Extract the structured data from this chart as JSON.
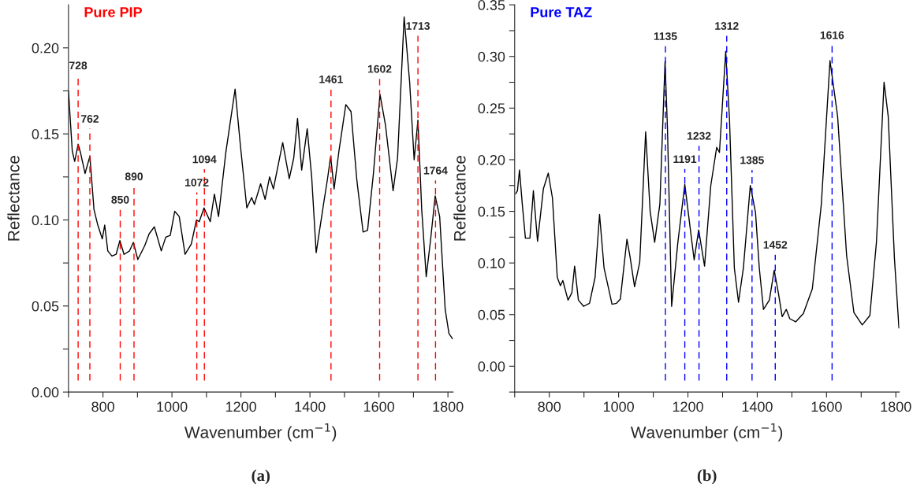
{
  "chart_data": [
    {
      "type": "line",
      "title": "Pure PIP",
      "xlabel": "Wavenumber (cm$^{−1}$)",
      "ylabel": "Reflectance",
      "annotations": [
        "(a)"
      ],
      "x": [
        700,
        711,
        718,
        728,
        735,
        748,
        762,
        774,
        785,
        798,
        805,
        814,
        826,
        838,
        849,
        861,
        877,
        888,
        901,
        921,
        934,
        949,
        969,
        982,
        995,
        1008,
        1021,
        1038,
        1056,
        1071,
        1079,
        1093,
        1111,
        1123,
        1135,
        1156,
        1183,
        1198,
        1217,
        1231,
        1239,
        1257,
        1270,
        1283,
        1294,
        1321,
        1340,
        1353,
        1364,
        1376,
        1392,
        1405,
        1418,
        1440,
        1451,
        1460,
        1470,
        1484,
        1504,
        1519,
        1536,
        1554,
        1567,
        1584,
        1603,
        1619,
        1641,
        1654,
        1673,
        1689,
        1702,
        1713,
        1724,
        1737,
        1750,
        1763,
        1776,
        1792,
        1803,
        1813
      ],
      "series": [
        {
          "color": "#000000",
          "values": [
            0.175,
            0.14,
            0.134,
            0.144,
            0.139,
            0.127,
            0.137,
            0.106,
            0.097,
            0.089,
            0.097,
            0.082,
            0.079,
            0.08,
            0.088,
            0.08,
            0.082,
            0.087,
            0.077,
            0.085,
            0.092,
            0.096,
            0.082,
            0.09,
            0.091,
            0.105,
            0.102,
            0.08,
            0.086,
            0.1,
            0.099,
            0.107,
            0.099,
            0.115,
            0.102,
            0.139,
            0.176,
            0.144,
            0.107,
            0.113,
            0.109,
            0.121,
            0.112,
            0.125,
            0.118,
            0.145,
            0.124,
            0.136,
            0.159,
            0.129,
            0.153,
            0.125,
            0.081,
            0.11,
            0.124,
            0.137,
            0.118,
            0.14,
            0.167,
            0.163,
            0.123,
            0.093,
            0.094,
            0.127,
            0.173,
            0.155,
            0.117,
            0.136,
            0.218,
            0.18,
            0.135,
            0.158,
            0.106,
            0.067,
            0.089,
            0.114,
            0.102,
            0.048,
            0.034,
            0.031
          ]
        }
      ],
      "xlim": [
        700,
        1815
      ],
      "ylim": [
        0,
        0.225
      ],
      "xticks": [
        {
          "value": 700,
          "label": null
        },
        800,
        {
          "value": 900,
          "label": null
        },
        1000,
        {
          "value": 1100,
          "label": null
        },
        1200,
        {
          "value": 1300,
          "label": null
        },
        1400,
        {
          "value": 1500,
          "label": null
        },
        1600,
        {
          "value": 1700,
          "label": null
        },
        1800
      ],
      "yticks": [
        {
          "value": 0,
          "label": "0.00"
        },
        {
          "value": 0.025,
          "label": null
        },
        {
          "value": 0.05,
          "label": "0.05"
        },
        {
          "value": 0.075,
          "label": null
        },
        {
          "value": 0.1,
          "label": "0.10"
        },
        {
          "value": 0.125,
          "label": null
        },
        {
          "value": 0.15,
          "label": "0.15"
        },
        {
          "value": 0.175,
          "label": null
        },
        {
          "value": 0.2,
          "label": "0.20"
        }
      ],
      "ref_lines": [
        {
          "axis": "x",
          "value": 728,
          "label": "728",
          "color": "#ff0000",
          "line_style": "dashed"
        },
        {
          "axis": "x",
          "value": 762,
          "label": "762",
          "color": "#ff0000",
          "line_style": "dashed"
        },
        {
          "axis": "x",
          "value": 850,
          "label": "850",
          "color": "#ff0000",
          "line_style": "dashed"
        },
        {
          "axis": "x",
          "value": 890,
          "label": "890",
          "color": "#ff0000",
          "line_style": "dashed"
        },
        {
          "axis": "x",
          "value": 1072,
          "label": "1072",
          "color": "#ff0000",
          "line_style": "dashed"
        },
        {
          "axis": "x",
          "value": 1094,
          "label": "1094",
          "color": "#ff0000",
          "line_style": "dashed"
        },
        {
          "axis": "x",
          "value": 1461,
          "label": "1461",
          "color": "#ff0000",
          "line_style": "dashed"
        },
        {
          "axis": "x",
          "value": 1602,
          "label": "1602",
          "color": "#ff0000",
          "line_style": "dashed"
        },
        {
          "axis": "x",
          "value": 1713,
          "label": "1713",
          "color": "#ff0000",
          "line_style": "dashed"
        },
        {
          "axis": "x",
          "value": 1764,
          "label": "1764",
          "color": "#ff0000",
          "line_style": "dashed"
        }
      ],
      "grid": false,
      "legend": false
    },
    {
      "type": "line",
      "title": "Pure TAZ",
      "xlabel": "Wavenumber (cm$^{−1}$)",
      "ylabel": "Reflectance",
      "annotations": [
        "(b)"
      ],
      "x": [
        703,
        708,
        714,
        722,
        731,
        744,
        754,
        766,
        783,
        797,
        809,
        823,
        832,
        839,
        854,
        865,
        873,
        884,
        899,
        916,
        932,
        945,
        958,
        981,
        994,
        1005,
        1024,
        1033,
        1046,
        1061,
        1078,
        1091,
        1104,
        1119,
        1134,
        1141,
        1153,
        1171,
        1191,
        1205,
        1218,
        1231,
        1248,
        1266,
        1283,
        1291,
        1309,
        1320,
        1334,
        1346,
        1360,
        1380,
        1395,
        1406,
        1418,
        1435,
        1449,
        1461,
        1472,
        1484,
        1494,
        1511,
        1533,
        1559,
        1585,
        1610,
        1632,
        1658,
        1679,
        1703,
        1725,
        1744,
        1766,
        1778,
        1796,
        1809
      ],
      "series": [
        {
          "color": "#000000",
          "values": [
            0.167,
            0.17,
            0.19,
            0.157,
            0.124,
            0.124,
            0.17,
            0.121,
            0.172,
            0.187,
            0.163,
            0.086,
            0.078,
            0.083,
            0.064,
            0.071,
            0.097,
            0.064,
            0.058,
            0.061,
            0.086,
            0.147,
            0.095,
            0.06,
            0.061,
            0.065,
            0.123,
            0.106,
            0.077,
            0.101,
            0.227,
            0.15,
            0.12,
            0.157,
            0.295,
            0.23,
            0.058,
            0.12,
            0.176,
            0.138,
            0.103,
            0.132,
            0.097,
            0.175,
            0.212,
            0.207,
            0.305,
            0.239,
            0.095,
            0.062,
            0.095,
            0.175,
            0.149,
            0.095,
            0.055,
            0.064,
            0.093,
            0.071,
            0.048,
            0.055,
            0.046,
            0.043,
            0.051,
            0.075,
            0.157,
            0.296,
            0.242,
            0.107,
            0.052,
            0.04,
            0.049,
            0.12,
            0.275,
            0.242,
            0.104,
            0.037
          ]
        }
      ],
      "xlim": [
        700,
        1810
      ],
      "ylim": [
        -0.025,
        0.35
      ],
      "xticks": [
        {
          "value": 700,
          "label": null
        },
        800,
        {
          "value": 900,
          "label": null
        },
        1000,
        {
          "value": 1100,
          "label": null
        },
        1200,
        {
          "value": 1300,
          "label": null
        },
        1400,
        {
          "value": 1500,
          "label": null
        },
        1600,
        {
          "value": 1700,
          "label": null
        },
        1800
      ],
      "yticks": [
        {
          "value": -0.025,
          "label": null
        },
        {
          "value": 0,
          "label": "0.00"
        },
        {
          "value": 0.025,
          "label": null
        },
        {
          "value": 0.05,
          "label": "0.05"
        },
        {
          "value": 0.075,
          "label": null
        },
        {
          "value": 0.1,
          "label": "0.10"
        },
        {
          "value": 0.125,
          "label": null
        },
        {
          "value": 0.15,
          "label": "0.15"
        },
        {
          "value": 0.175,
          "label": null
        },
        {
          "value": 0.2,
          "label": "0.20"
        },
        {
          "value": 0.225,
          "label": null
        },
        {
          "value": 0.25,
          "label": "0.25"
        },
        {
          "value": 0.275,
          "label": null
        },
        {
          "value": 0.3,
          "label": "0.30"
        },
        {
          "value": 0.325,
          "label": null
        },
        {
          "value": 0.35,
          "label": "0.35"
        }
      ],
      "ref_lines": [
        {
          "axis": "x",
          "value": 1135,
          "label": "1135",
          "color": "#0000ff",
          "line_style": "dashed"
        },
        {
          "axis": "x",
          "value": 1191,
          "label": "1191",
          "color": "#0000ff",
          "line_style": "dashed"
        },
        {
          "axis": "x",
          "value": 1232,
          "label": "1232",
          "color": "#0000ff",
          "line_style": "dashed"
        },
        {
          "axis": "x",
          "value": 1312,
          "label": "1312",
          "color": "#0000ff",
          "line_style": "dashed"
        },
        {
          "axis": "x",
          "value": 1385,
          "label": "1385",
          "color": "#0000ff",
          "line_style": "dashed"
        },
        {
          "axis": "x",
          "value": 1452,
          "label": "1452",
          "color": "#0000ff",
          "line_style": "dashed"
        },
        {
          "axis": "x",
          "value": 1616,
          "label": "1616",
          "color": "#0000ff",
          "line_style": "dashed"
        }
      ],
      "grid": false,
      "legend": false
    }
  ]
}
